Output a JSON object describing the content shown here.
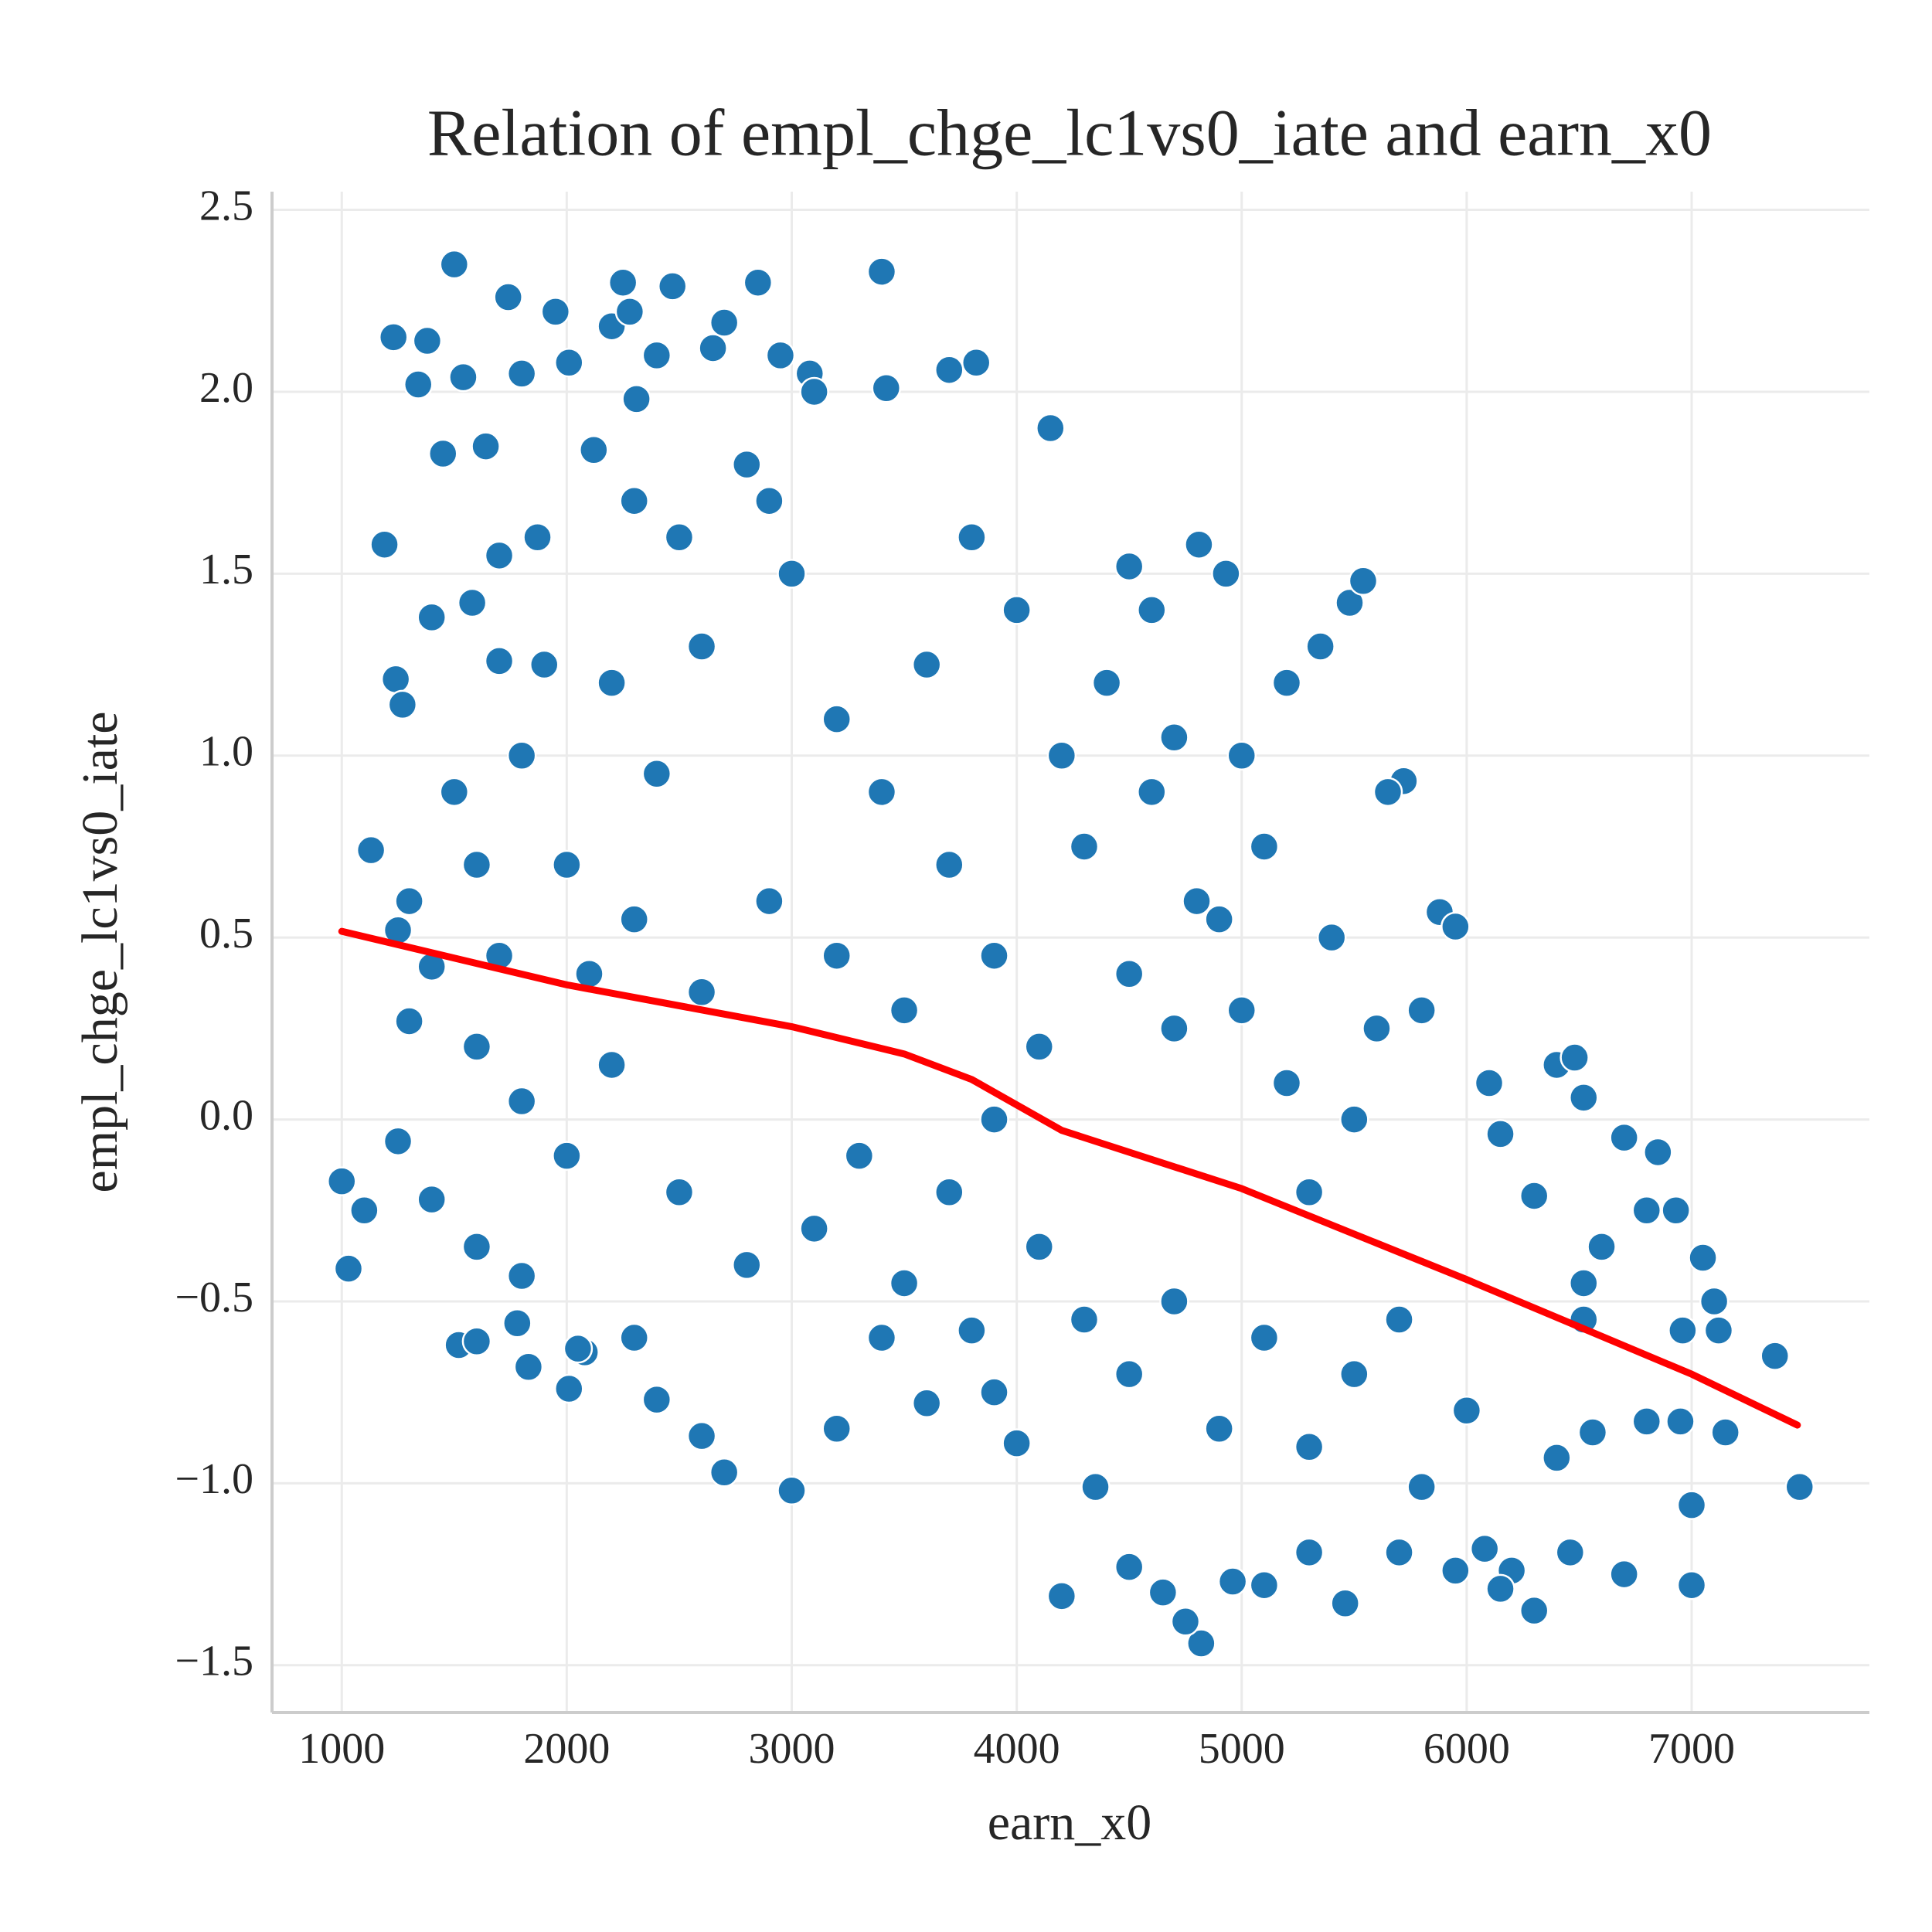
{
  "chart_data": {
    "type": "scatter",
    "title": "Relation of empl_chge_lc1vs0_iate and earn_x0",
    "x_label": "earn_x0",
    "y_label": "empl_chge_lc1vs0_iate",
    "xlim": [
      690,
      7790
    ],
    "ylim": [
      -1.63,
      2.55
    ],
    "xticks": [
      1000,
      2000,
      3000,
      4000,
      5000,
      6000,
      7000
    ],
    "yticks": [
      {
        "value": -1.5,
        "label": "−1.5"
      },
      {
        "value": -1.0,
        "label": "−1.0"
      },
      {
        "value": -0.5,
        "label": "−0.5"
      },
      {
        "value": 0,
        "label": "0.0"
      },
      0.5,
      {
        "value": 1,
        "label": "1.0"
      },
      1.5,
      {
        "value": 2,
        "label": "2.0"
      },
      2.5
    ],
    "grid": true,
    "series": [
      {
        "color": "#1f77b4",
        "x": [
          1000,
          1030,
          1100,
          1130,
          1190,
          1230,
          1240,
          1270,
          1300,
          1340,
          1380,
          1400,
          1450,
          1500,
          1520,
          1540,
          1580,
          1600,
          1640,
          1700,
          1740,
          1780,
          1800,
          1830,
          1870,
          1950,
          2010,
          2010,
          2080,
          2120,
          2200,
          2250,
          2280,
          2310,
          2400,
          2470,
          2650,
          2700,
          2850,
          2950,
          3080,
          3400,
          3420,
          3700,
          3820,
          4150,
          4500,
          4600,
          4810,
          4930,
          5480,
          5540,
          5720,
          5880,
          5950,
          6100,
          6150,
          6300,
          6400,
          6480,
          6520,
          6700,
          6850,
          6800,
          6930,
          7050,
          7100,
          7120,
          6960,
          7370,
          7480,
          7000,
          7000,
          6950,
          7150,
          6800,
          6700,
          6300,
          6200,
          6460,
          6400,
          6520,
          6520,
          6600,
          6560,
          6080,
          6150,
          5950,
          5800,
          5700,
          5460,
          5300,
          5100,
          4960,
          4820,
          4750,
          4650,
          4500,
          4200,
          4350,
          4000,
          3900,
          3800,
          3600,
          3400,
          3200,
          3000,
          2700,
          2600,
          2400,
          2300,
          2050,
          1800,
          1600,
          1400,
          1250,
          1300,
          1250,
          1400,
          1600,
          1800,
          2000,
          2200,
          2500,
          2800,
          3100,
          3300,
          3500,
          3700,
          3900,
          4100,
          4300,
          4500,
          4700,
          4900,
          5100,
          5300,
          5500,
          5700,
          6000,
          5600,
          5400,
          5200,
          5000,
          4800,
          4600,
          4400,
          4200,
          4000,
          3800,
          3600,
          3400,
          3200,
          3000,
          2800,
          2600,
          2400,
          2200,
          2000,
          1800,
          1600,
          1500,
          1700,
          2100,
          2300,
          2600,
          2900,
          3200,
          3500,
          3700,
          3900,
          4100,
          4300,
          4500,
          4700,
          4900,
          5100,
          5300,
          5500,
          5800,
          5000,
          5200,
          5350,
          5650,
          4700,
          3100,
          2900,
          2500,
          2300,
          1900,
          1700
        ],
        "y": [
          -0.17,
          -0.41,
          -0.25,
          0.74,
          1.58,
          2.15,
          1.21,
          1.14,
          0.6,
          2.02,
          2.14,
          1.38,
          1.83,
          2.35,
          -0.62,
          2.04,
          1.42,
          -0.61,
          1.85,
          1.26,
          2.26,
          -0.56,
          2.05,
          -0.68,
          1.6,
          2.22,
          -0.74,
          2.08,
          -0.64,
          1.84,
          2.18,
          2.3,
          2.22,
          1.98,
          2.1,
          2.29,
          2.12,
          2.19,
          2.3,
          2.1,
          2.05,
          2.33,
          2.01,
          2.06,
          2.08,
          1.9,
          1.52,
          1.4,
          1.58,
          1.5,
          1.42,
          1.48,
          0.93,
          0.57,
          0.53,
          0.1,
          -0.04,
          -0.21,
          0.15,
          0.17,
          0.06,
          -0.05,
          -0.09,
          -0.25,
          -0.25,
          -0.38,
          -0.5,
          -0.58,
          -0.58,
          -0.65,
          -1.01,
          -1.06,
          -1.28,
          -0.83,
          -0.86,
          -0.83,
          -1.25,
          -1.35,
          -1.24,
          -1.19,
          -0.93,
          -0.55,
          -0.45,
          -0.35,
          -0.86,
          -1.18,
          -1.29,
          -1.24,
          -1.01,
          -1.19,
          -1.33,
          -1.19,
          -1.28,
          -1.27,
          -1.44,
          -1.38,
          -1.3,
          -1.23,
          -1.31,
          -1.01,
          -0.89,
          -0.75,
          -0.58,
          -0.78,
          -0.6,
          -0.85,
          -1.02,
          -0.97,
          -0.87,
          -0.77,
          -0.6,
          -0.63,
          -0.43,
          -0.35,
          -0.22,
          -0.06,
          0.27,
          0.52,
          0.42,
          0.2,
          0.05,
          -0.1,
          0.15,
          -0.2,
          -0.4,
          -0.3,
          -0.1,
          -0.45,
          -0.2,
          0.0,
          -0.35,
          -0.55,
          -0.7,
          -0.5,
          -0.85,
          -0.6,
          -0.9,
          -0.7,
          -0.55,
          -0.8,
          0.25,
          0.5,
          0.1,
          0.3,
          0.6,
          0.9,
          1.2,
          1.0,
          1.4,
          1.6,
          1.25,
          0.9,
          1.1,
          1.5,
          1.8,
          1.3,
          0.95,
          1.2,
          0.7,
          1.0,
          0.7,
          0.9,
          0.45,
          0.4,
          0.55,
          0.35,
          0.6,
          0.45,
          0.3,
          0.7,
          0.45,
          0.2,
          0.75,
          0.4,
          0.25,
          0.55,
          0.75,
          -0.2,
          0.0,
          0.3,
          1.0,
          1.2,
          1.3,
          0.9,
          1.05,
          2.0,
          1.7,
          1.6,
          1.7,
          1.25,
          1.55
        ]
      }
    ],
    "trend": {
      "color": "#ff0000",
      "x": [
        1000,
        2000,
        3000,
        3500,
        3800,
        4200,
        5000,
        6000,
        7000,
        7470
      ],
      "y": [
        0.517,
        0.37,
        0.255,
        0.18,
        0.11,
        -0.03,
        -0.19,
        -0.44,
        -0.7,
        -0.84
      ]
    }
  }
}
